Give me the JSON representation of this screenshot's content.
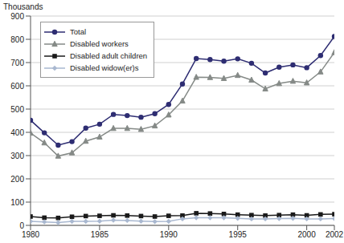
{
  "chart_data": {
    "type": "line",
    "y_label": "Thousands",
    "x": [
      1980,
      1981,
      1982,
      1983,
      1984,
      1985,
      1986,
      1987,
      1988,
      1989,
      1990,
      1991,
      1992,
      1993,
      1994,
      1995,
      1996,
      1997,
      1998,
      1999,
      2000,
      2001,
      2002
    ],
    "xlim": [
      1980,
      2002
    ],
    "xticks": [
      1980,
      1985,
      1990,
      1995,
      2000,
      2002
    ],
    "ylim": [
      0,
      900
    ],
    "yticks": [
      0,
      100,
      200,
      300,
      400,
      500,
      600,
      700,
      800,
      900
    ],
    "grid": true,
    "legend": "upper left",
    "series": [
      {
        "name": "Total",
        "color": "#2e2d72",
        "marker": "circle",
        "values": [
          452,
          398,
          345,
          360,
          418,
          435,
          477,
          472,
          465,
          480,
          520,
          608,
          717,
          713,
          706,
          716,
          697,
          655,
          680,
          690,
          678,
          730,
          812
        ]
      },
      {
        "name": "Disabled workers",
        "color": "#858a87",
        "marker": "triangle",
        "values": [
          397,
          355,
          298,
          312,
          362,
          380,
          417,
          417,
          413,
          428,
          475,
          535,
          637,
          636,
          632,
          645,
          625,
          587,
          610,
          620,
          613,
          660,
          743
        ]
      },
      {
        "name": "Disabled adult children",
        "color": "#1a1a1a",
        "marker": "square",
        "values": [
          38,
          33,
          32,
          37,
          40,
          41,
          43,
          42,
          40,
          38,
          41,
          42,
          52,
          51,
          49,
          46,
          44,
          42,
          44,
          46,
          43,
          47,
          48
        ]
      },
      {
        "name": "Disabled widow(er)s",
        "color": "#a9b8d0",
        "marker": "diamond",
        "values": [
          17,
          15,
          12,
          17,
          17,
          18,
          22,
          21,
          18,
          16,
          17,
          28,
          33,
          33,
          33,
          30,
          28,
          28,
          29,
          30,
          28,
          28,
          29
        ]
      }
    ]
  }
}
